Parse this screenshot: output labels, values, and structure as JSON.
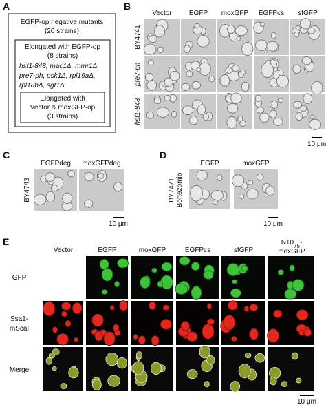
{
  "panel_a": {
    "label": "A",
    "outer": [
      "EGFP-op negative mutants",
      "(20 strains)"
    ],
    "middle": [
      "Elongated with EGFP-op",
      "(8 strains)"
    ],
    "mutants": [
      "hsf1-848, mac1Δ, mmr1Δ,",
      "pre7-ph, psk1Δ, rpl19aΔ,",
      "rpl18bΔ, sgt1Δ"
    ],
    "inner": [
      "Elongated with",
      "Vector & moxGFP-op",
      "(3 strains)"
    ]
  },
  "panel_b": {
    "label": "B",
    "columns": [
      "Vector",
      "EGFP",
      "moxGFP",
      "EGFPcs",
      "sfGFP"
    ],
    "rows": [
      "BY4741",
      "pre7-ph",
      "hsf1-848"
    ],
    "scale": "10 μm"
  },
  "panel_c": {
    "label": "C",
    "columns": [
      "EGFPdeg",
      "moxGFPdeg"
    ],
    "row": "BY4743",
    "scale": "10 μm"
  },
  "panel_d": {
    "label": "D",
    "columns": [
      "EGFP",
      "moxGFP"
    ],
    "row": [
      "BY7471",
      "Bortezomib"
    ],
    "scale": "10 μm"
  },
  "panel_e": {
    "label": "E",
    "columns": [
      "Vector",
      "EGFP",
      "moxGFP",
      "EGFPcs",
      "sfGFP"
    ],
    "last_column": {
      "main": "N10",
      "sub": "75",
      "rest": "-",
      "line2": "moxGFP"
    },
    "rows": [
      "GFP",
      [
        "Ssa1-",
        "mScaI"
      ],
      "Merge"
    ],
    "scale": "10 μm"
  }
}
